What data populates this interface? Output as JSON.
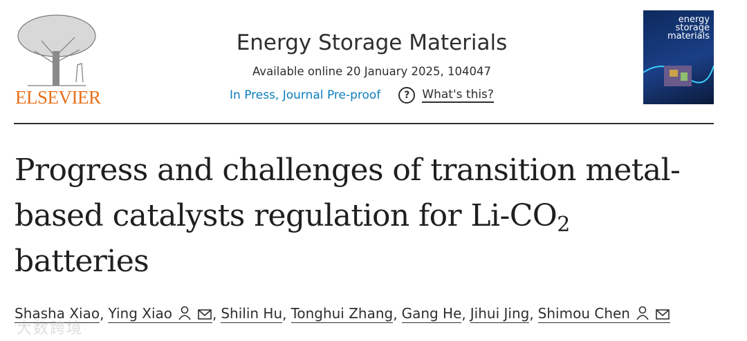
{
  "header": {
    "publisher": "ELSEVIER",
    "journal": "Energy Storage Materials",
    "availability": "Available online 20 January 2025, 104047",
    "status_link": "In Press, Journal Pre-proof",
    "help_link": "What's this?",
    "help_icon": "?",
    "cover_title": [
      "energy",
      "storage",
      "materials"
    ]
  },
  "article": {
    "title": {
      "line1": "Progress and challenges of transition metal-",
      "line2": "based catalysts regulation for Li-CO",
      "subscript": "2",
      "line3": "batteries"
    },
    "separator": ",",
    "authors": [
      {
        "name": "Shasha Xiao",
        "contact": false
      },
      {
        "name": "Ying Xiao",
        "contact": true
      },
      {
        "name": "Shilin Hu",
        "contact": false
      },
      {
        "name": "Tonghui Zhang",
        "contact": false
      },
      {
        "name": "Gang He",
        "contact": false
      },
      {
        "name": "Jihui Jing",
        "contact": false
      },
      {
        "name": "Shimou Chen",
        "contact": true
      }
    ]
  },
  "watermark": "大数跨境"
}
